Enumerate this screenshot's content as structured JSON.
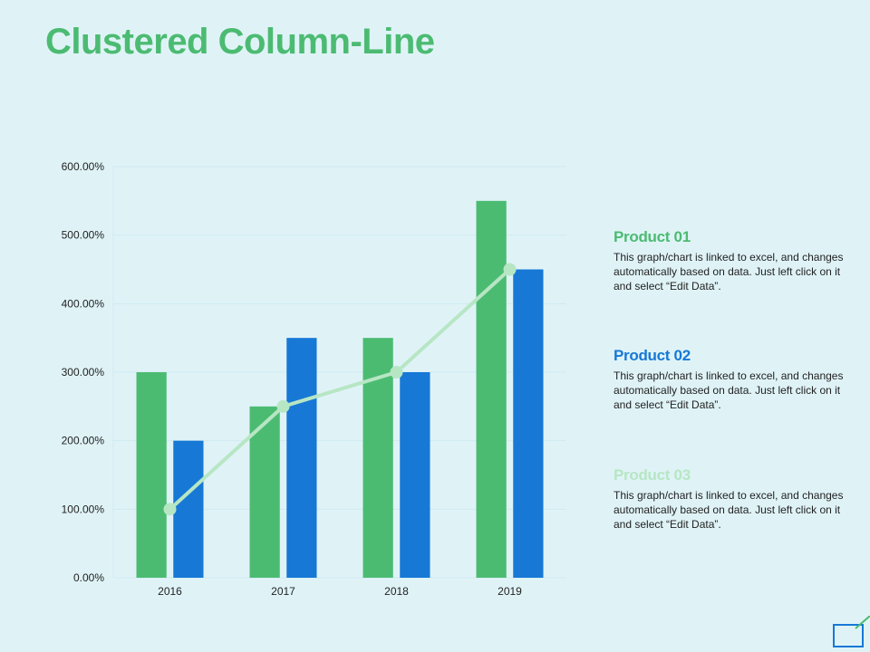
{
  "title": "Clustered Column-Line",
  "chart_data": {
    "type": "bar",
    "categories": [
      "2016",
      "2017",
      "2018",
      "2019"
    ],
    "series": [
      {
        "name": "Product 01",
        "kind": "bar",
        "color": "#4cbb72",
        "values": [
          300,
          250,
          350,
          550
        ]
      },
      {
        "name": "Product 02",
        "kind": "bar",
        "color": "#1778d6",
        "values": [
          200,
          350,
          300,
          450
        ]
      },
      {
        "name": "Product 03",
        "kind": "line",
        "color": "#b7e6c4",
        "values": [
          100,
          250,
          300,
          450
        ]
      }
    ],
    "ylim": [
      0,
      600
    ],
    "yticks": [
      "0.00%",
      "100.00%",
      "200.00%",
      "300.00%",
      "400.00%",
      "500.00%",
      "600.00%"
    ],
    "xlabel": "",
    "ylabel": "",
    "grid": true,
    "legend_placement": "right"
  },
  "legend": [
    {
      "title": "Product 01",
      "color": "#4cbb72",
      "desc": "This graph/chart is linked to excel, and changes automatically based on data. Just left click on it and select “Edit Data”."
    },
    {
      "title": "Product 02",
      "color": "#1778d6",
      "desc": "This graph/chart is linked to excel, and changes automatically based on data. Just left click on it and select “Edit Data”."
    },
    {
      "title": "Product 03",
      "color": "#b7e6c4",
      "desc": "This graph/chart is linked to excel, and changes automatically based on data. Just left click on it and select “Edit Data”."
    }
  ],
  "icons": {
    "corner": "corner-frame-icon"
  }
}
